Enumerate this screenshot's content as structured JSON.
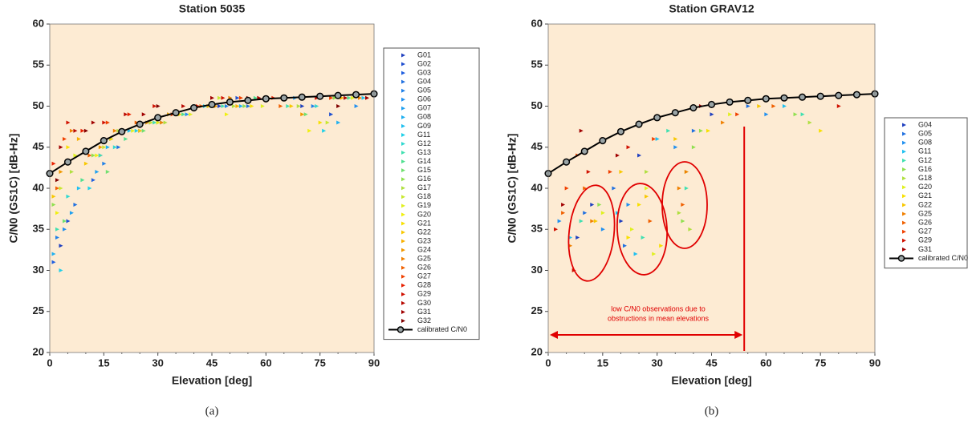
{
  "chart_data": [
    {
      "type": "scatter",
      "title": "Station 5035",
      "xlabel": "Elevation [deg]",
      "ylabel": "C/N0 (GS1C) [dB-Hz]",
      "caption": "(a)",
      "xlim": [
        0,
        90
      ],
      "xticks": [
        0,
        15,
        30,
        45,
        60,
        75,
        90
      ],
      "ylim": [
        20,
        60
      ],
      "yticks": [
        20,
        25,
        30,
        35,
        40,
        45,
        50,
        55,
        60
      ],
      "background": "#fdebd3",
      "legend": "right",
      "series": [
        {
          "name": "G01",
          "color": "#1f3fbf",
          "x": [
            3,
            14,
            28,
            47,
            70
          ],
          "values": [
            33,
            44,
            48,
            50,
            50
          ]
        },
        {
          "name": "G02",
          "color": "#1f4fd0",
          "x": [
            5,
            17,
            33,
            52,
            78
          ],
          "values": [
            36,
            46,
            49,
            51,
            49
          ]
        },
        {
          "name": "G03",
          "color": "#1f5fe0",
          "x": [
            1,
            12,
            25,
            44,
            65
          ],
          "values": [
            31,
            41,
            47,
            50,
            51
          ]
        },
        {
          "name": "G04",
          "color": "#2070e0",
          "x": [
            7,
            19,
            36,
            55,
            82
          ],
          "values": [
            38,
            45,
            49,
            50,
            51
          ]
        },
        {
          "name": "G05",
          "color": "#2080e8",
          "x": [
            2,
            15,
            30,
            49,
            73
          ],
          "values": [
            34,
            43,
            48,
            50,
            50
          ]
        },
        {
          "name": "G06",
          "color": "#2090f0",
          "x": [
            4,
            20,
            38,
            58,
            85
          ],
          "values": [
            35,
            47,
            49,
            51,
            50
          ]
        },
        {
          "name": "G07",
          "color": "#20a0f0",
          "x": [
            6,
            13,
            27,
            46,
            68
          ],
          "values": [
            37,
            42,
            48,
            50,
            51
          ]
        },
        {
          "name": "G08",
          "color": "#20b0f0",
          "x": [
            1,
            16,
            34,
            53,
            80
          ],
          "values": [
            32,
            45,
            49,
            50,
            48
          ]
        },
        {
          "name": "G09",
          "color": "#20c0f0",
          "x": [
            8,
            22,
            40,
            60,
            87
          ],
          "values": [
            40,
            47,
            50,
            51,
            51
          ]
        },
        {
          "name": "G11",
          "color": "#20d0e8",
          "x": [
            3,
            11,
            24,
            43,
            76
          ],
          "values": [
            30,
            40,
            47,
            50,
            47
          ]
        },
        {
          "name": "G12",
          "color": "#30d8d0",
          "x": [
            5,
            18,
            31,
            50,
            74
          ],
          "values": [
            39,
            45,
            48,
            51,
            50
          ]
        },
        {
          "name": "G13",
          "color": "#40e0b0",
          "x": [
            2,
            14,
            29,
            48,
            66
          ],
          "values": [
            35,
            44,
            48,
            50,
            50
          ]
        },
        {
          "name": "G14",
          "color": "#50e090",
          "x": [
            9,
            21,
            37,
            57,
            83
          ],
          "values": [
            41,
            46,
            49,
            51,
            51
          ]
        },
        {
          "name": "G15",
          "color": "#70e070",
          "x": [
            4,
            16,
            26,
            45,
            71
          ],
          "values": [
            36,
            42,
            47,
            50,
            49
          ]
        },
        {
          "name": "G16",
          "color": "#90e050",
          "x": [
            1,
            12,
            35,
            54,
            79
          ],
          "values": [
            38,
            44,
            49,
            50,
            51
          ]
        },
        {
          "name": "G17",
          "color": "#b0e040",
          "x": [
            6,
            19,
            32,
            51,
            69
          ],
          "values": [
            42,
            47,
            48,
            50,
            50
          ]
        },
        {
          "name": "G18",
          "color": "#c8e830",
          "x": [
            3,
            15,
            28,
            47,
            77
          ],
          "values": [
            40,
            45,
            48,
            51,
            48
          ]
        },
        {
          "name": "G19",
          "color": "#e0f020",
          "x": [
            7,
            23,
            39,
            59,
            84
          ],
          "values": [
            44,
            47,
            49,
            50,
            51
          ]
        },
        {
          "name": "G20",
          "color": "#f0f010",
          "x": [
            2,
            13,
            30,
            49,
            72
          ],
          "values": [
            37,
            44,
            48,
            49,
            47
          ]
        },
        {
          "name": "G21",
          "color": "#f8e000",
          "x": [
            5,
            17,
            36,
            56,
            75
          ],
          "values": [
            45,
            46,
            49,
            50,
            48
          ]
        },
        {
          "name": "G22",
          "color": "#f8c800",
          "x": [
            1,
            10,
            25,
            44,
            67
          ],
          "values": [
            39,
            43,
            47,
            50,
            50
          ]
        },
        {
          "name": "G23",
          "color": "#f8b000",
          "x": [
            8,
            20,
            33,
            52,
            81
          ],
          "values": [
            46,
            47,
            49,
            50,
            51
          ]
        },
        {
          "name": "G24",
          "color": "#f09800",
          "x": [
            3,
            14,
            27,
            46,
            70
          ],
          "values": [
            42,
            45,
            48,
            50,
            49
          ]
        },
        {
          "name": "G25",
          "color": "#f08000",
          "x": [
            6,
            18,
            31,
            50,
            86
          ],
          "values": [
            47,
            47,
            48,
            51,
            51
          ]
        },
        {
          "name": "G26",
          "color": "#f06000",
          "x": [
            2,
            11,
            24,
            42,
            64
          ],
          "values": [
            40,
            44,
            48,
            50,
            50
          ]
        },
        {
          "name": "G27",
          "color": "#f04000",
          "x": [
            4,
            16,
            34,
            53,
            78
          ],
          "values": [
            46,
            48,
            49,
            51,
            51
          ]
        },
        {
          "name": "G28",
          "color": "#e82000",
          "x": [
            1,
            9,
            22,
            41,
            62
          ],
          "values": [
            43,
            47,
            49,
            50,
            51
          ]
        },
        {
          "name": "G29",
          "color": "#d01000",
          "x": [
            5,
            15,
            29,
            48,
            74
          ],
          "values": [
            48,
            48,
            50,
            51,
            51
          ]
        },
        {
          "name": "G30",
          "color": "#b80800",
          "x": [
            7,
            21,
            37,
            58,
            82
          ],
          "values": [
            47,
            49,
            50,
            51,
            51
          ]
        },
        {
          "name": "G31",
          "color": "#a00000",
          "x": [
            3,
            12,
            26,
            45,
            88
          ],
          "values": [
            45,
            48,
            49,
            51,
            51
          ]
        },
        {
          "name": "G32",
          "color": "#800000",
          "x": [
            2,
            10,
            30,
            55,
            80
          ],
          "values": [
            41,
            47,
            50,
            51,
            50
          ]
        },
        {
          "name": "calibrated C/N0",
          "color": "#000000",
          "style": "line",
          "x": [
            0,
            5,
            10,
            15,
            20,
            25,
            30,
            35,
            40,
            45,
            50,
            55,
            60,
            65,
            70,
            75,
            80,
            85,
            90
          ],
          "values": [
            41.8,
            43.2,
            44.5,
            45.8,
            46.9,
            47.8,
            48.6,
            49.2,
            49.8,
            50.2,
            50.5,
            50.7,
            50.9,
            51.0,
            51.1,
            51.2,
            51.3,
            51.4,
            51.5
          ]
        }
      ]
    },
    {
      "type": "scatter",
      "title": "Station GRAV12",
      "xlabel": "Elevation [deg]",
      "ylabel": "C/N0 (GS1C) [dB-Hz]",
      "caption": "(b)",
      "xlim": [
        0,
        90
      ],
      "xticks": [
        0,
        15,
        30,
        45,
        60,
        75,
        90
      ],
      "ylim": [
        20,
        60
      ],
      "yticks": [
        20,
        25,
        30,
        35,
        40,
        45,
        50,
        55,
        60
      ],
      "background": "#fdebd3",
      "legend": "right",
      "annotations": [
        "low C/N0 observations due to",
        "obstructions in mean elevations"
      ],
      "annotation_color": "#e00000",
      "vline": 54,
      "series": [
        {
          "name": "G04",
          "color": "#1f3fbf",
          "x": [
            12,
            20,
            8,
            25,
            45
          ],
          "values": [
            38,
            36,
            34,
            44,
            49
          ]
        },
        {
          "name": "G05",
          "color": "#2070e0",
          "x": [
            10,
            21,
            18,
            40,
            55
          ],
          "values": [
            37,
            33,
            40,
            47,
            50
          ]
        },
        {
          "name": "G08",
          "color": "#2090f0",
          "x": [
            3,
            22,
            15,
            35,
            60
          ],
          "values": [
            36,
            38,
            35,
            45,
            49
          ]
        },
        {
          "name": "G11",
          "color": "#20c0f0",
          "x": [
            6,
            19,
            24,
            30,
            65
          ],
          "values": [
            34,
            37,
            32,
            46,
            50
          ]
        },
        {
          "name": "G12",
          "color": "#40e0b0",
          "x": [
            9,
            26,
            38,
            33,
            70
          ],
          "values": [
            36,
            34,
            40,
            47,
            49
          ]
        },
        {
          "name": "G16",
          "color": "#90e050",
          "x": [
            40,
            42,
            37,
            14,
            68
          ],
          "values": [
            45,
            47,
            36,
            38,
            49
          ]
        },
        {
          "name": "G18",
          "color": "#b0e040",
          "x": [
            36,
            38,
            39,
            27,
            72
          ],
          "values": [
            37,
            42,
            35,
            42,
            48
          ]
        },
        {
          "name": "G20",
          "color": "#e0f020",
          "x": [
            23,
            27,
            29,
            15,
            50
          ],
          "values": [
            35,
            40,
            32,
            37,
            49
          ]
        },
        {
          "name": "G21",
          "color": "#f8e000",
          "x": [
            25,
            22,
            31,
            44,
            75
          ],
          "values": [
            38,
            34,
            33,
            47,
            47
          ]
        },
        {
          "name": "G22",
          "color": "#f8c800",
          "x": [
            13,
            27,
            20,
            35,
            58
          ],
          "values": [
            36,
            39,
            42,
            46,
            50
          ]
        },
        {
          "name": "G25",
          "color": "#f08000",
          "x": [
            6,
            12,
            36,
            38,
            48
          ],
          "values": [
            33,
            36,
            40,
            42,
            48
          ]
        },
        {
          "name": "G26",
          "color": "#f06000",
          "x": [
            4,
            28,
            37,
            10,
            62
          ],
          "values": [
            37,
            36,
            38,
            40,
            50
          ]
        },
        {
          "name": "G27",
          "color": "#f04000",
          "x": [
            5,
            8,
            17,
            29,
            52
          ],
          "values": [
            40,
            44,
            42,
            46,
            49
          ]
        },
        {
          "name": "G29",
          "color": "#d01000",
          "x": [
            2,
            7,
            11,
            22,
            80
          ],
          "values": [
            35,
            30,
            42,
            45,
            50
          ]
        },
        {
          "name": "G31",
          "color": "#a00000",
          "x": [
            4,
            9,
            15,
            19,
            42
          ],
          "values": [
            38,
            47,
            46,
            44,
            50
          ]
        },
        {
          "name": "calibrated C/N0",
          "color": "#000000",
          "style": "line",
          "x": [
            0,
            5,
            10,
            15,
            20,
            25,
            30,
            35,
            40,
            45,
            50,
            55,
            60,
            65,
            70,
            75,
            80,
            85,
            90
          ],
          "values": [
            41.8,
            43.2,
            44.5,
            45.8,
            46.9,
            47.8,
            48.6,
            49.2,
            49.8,
            50.2,
            50.5,
            50.7,
            50.9,
            51.0,
            51.1,
            51.2,
            51.3,
            51.4,
            51.5
          ]
        }
      ]
    }
  ]
}
